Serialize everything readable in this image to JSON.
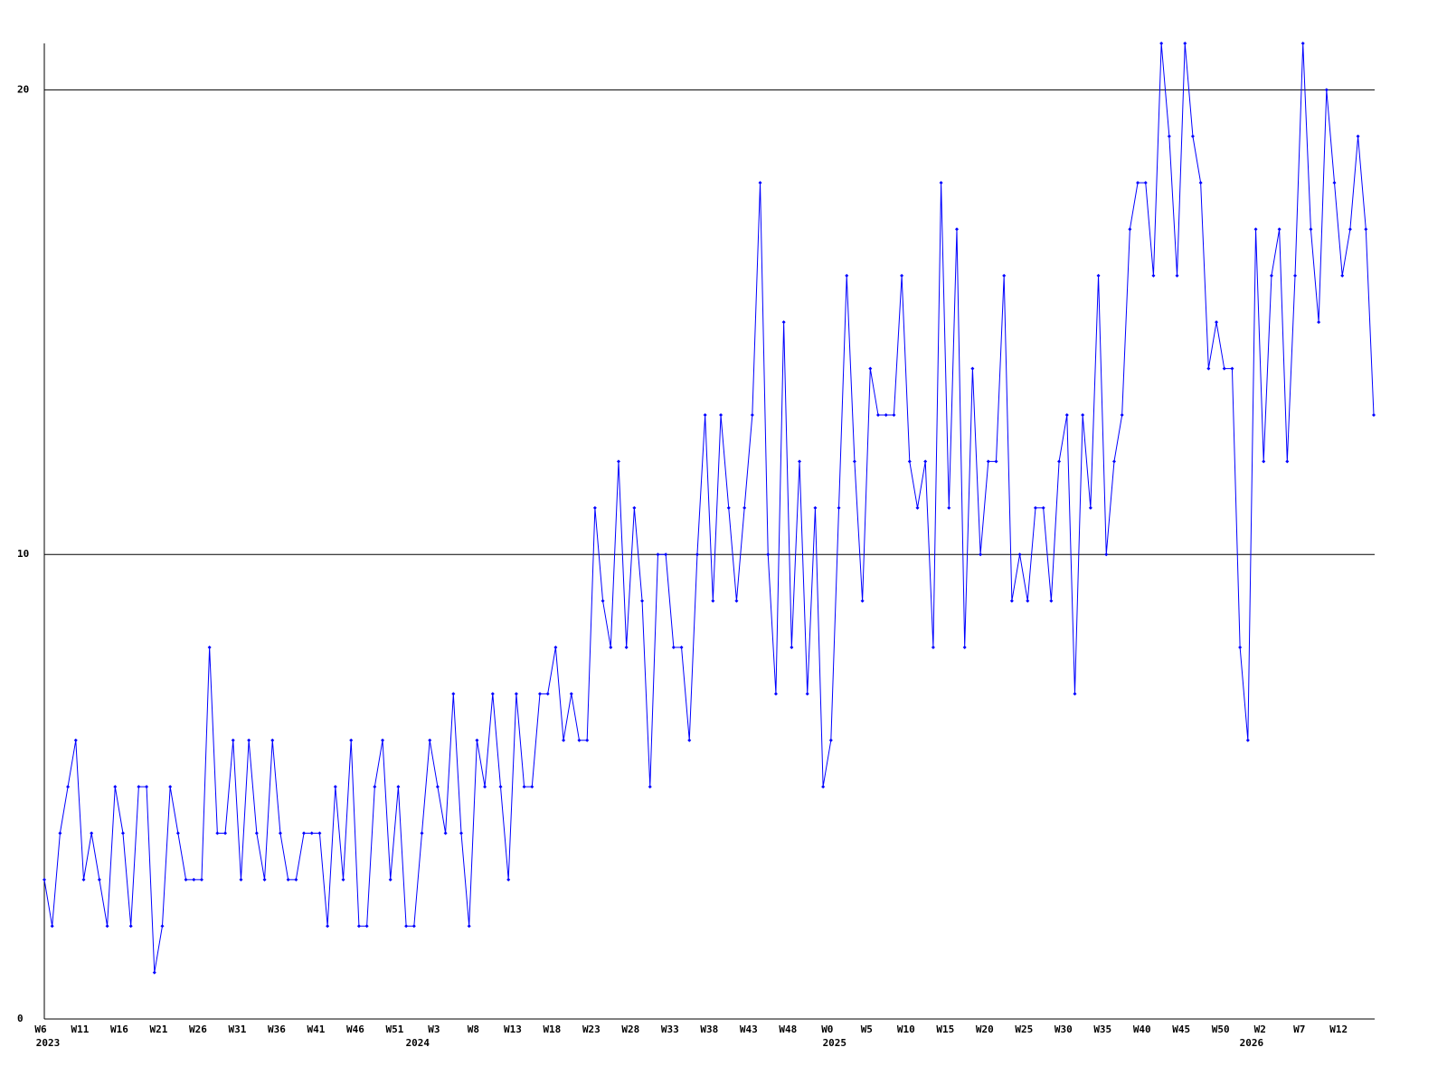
{
  "chart_data": {
    "type": "line",
    "categories": [
      "W6",
      null,
      null,
      null,
      null,
      "W11",
      null,
      null,
      null,
      null,
      "W16",
      null,
      null,
      null,
      null,
      "W21",
      null,
      null,
      null,
      null,
      "W26",
      null,
      null,
      null,
      null,
      "W31",
      null,
      null,
      null,
      null,
      "W36",
      null,
      null,
      null,
      null,
      "W41",
      null,
      null,
      null,
      null,
      "W46",
      null,
      null,
      null,
      null,
      "W51",
      null,
      null,
      null,
      null,
      "W3",
      null,
      null,
      null,
      null,
      "W8",
      null,
      null,
      null,
      null,
      "W13",
      null,
      null,
      null,
      null,
      "W18",
      null,
      null,
      null,
      null,
      "W23",
      null,
      null,
      null,
      null,
      "W28",
      null,
      null,
      null,
      null,
      "W33",
      null,
      null,
      null,
      null,
      "W38",
      null,
      null,
      null,
      null,
      "W43",
      null,
      null,
      null,
      null,
      "W48",
      null,
      null,
      null,
      null,
      "W0",
      null,
      null,
      null,
      null,
      "W5",
      null,
      null,
      null,
      null,
      "W10",
      null,
      null,
      null,
      null,
      "W15",
      null,
      null,
      null,
      null,
      "W20",
      null,
      null,
      null,
      null,
      "W25",
      null,
      null,
      null,
      null,
      "W30",
      null,
      null,
      null,
      null,
      "W35",
      null,
      null,
      null,
      null,
      "W40",
      null,
      null,
      null,
      null,
      "W45",
      null,
      null,
      null,
      null,
      "W50",
      null,
      null,
      null,
      null,
      "W2",
      null,
      null,
      null,
      null,
      "W7",
      null,
      null,
      null,
      null,
      "W12",
      null,
      null,
      null,
      null
    ],
    "year_labels": [
      "2023",
      null,
      null,
      null,
      null,
      null,
      null,
      null,
      null,
      null,
      null,
      null,
      null,
      null,
      null,
      null,
      null,
      null,
      null,
      null,
      null,
      null,
      null,
      null,
      null,
      null,
      null,
      null,
      null,
      null,
      null,
      null,
      null,
      null,
      null,
      null,
      null,
      null,
      null,
      null,
      null,
      null,
      null,
      null,
      null,
      null,
      null,
      "2024",
      null,
      null,
      null,
      null,
      null,
      null,
      null,
      null,
      null,
      null,
      null,
      null,
      null,
      null,
      null,
      null,
      null,
      null,
      null,
      null,
      null,
      null,
      null,
      null,
      null,
      null,
      null,
      null,
      null,
      null,
      null,
      null,
      null,
      null,
      null,
      null,
      null,
      null,
      null,
      null,
      null,
      null,
      null,
      null,
      null,
      null,
      null,
      null,
      null,
      null,
      null,
      null,
      "2025",
      null,
      null,
      null,
      null,
      null,
      null,
      null,
      null,
      null,
      null,
      null,
      null,
      null,
      null,
      null,
      null,
      null,
      null,
      null,
      null,
      null,
      null,
      null,
      null,
      null,
      null,
      null,
      null,
      null,
      null,
      null,
      null,
      null,
      null,
      null,
      null,
      null,
      null,
      null,
      null,
      null,
      null,
      null,
      null,
      null,
      null,
      null,
      null,
      null,
      null,
      null,
      null,
      "2026",
      null,
      null,
      null,
      null,
      null,
      null,
      null,
      null,
      null,
      null,
      null,
      null,
      null,
      null,
      null,
      null
    ],
    "values": [
      3,
      2,
      4,
      5,
      6,
      3,
      4,
      3,
      2,
      5,
      4,
      2,
      5,
      5,
      1,
      2,
      5,
      4,
      3,
      3,
      3,
      8,
      4,
      4,
      6,
      3,
      6,
      4,
      3,
      6,
      4,
      3,
      3,
      4,
      4,
      4,
      2,
      5,
      3,
      6,
      2,
      2,
      5,
      6,
      3,
      5,
      2,
      2,
      4,
      6,
      5,
      4,
      7,
      4,
      2,
      6,
      5,
      7,
      5,
      3,
      7,
      5,
      5,
      7,
      7,
      8,
      6,
      7,
      6,
      6,
      11,
      9,
      8,
      12,
      8,
      11,
      9,
      5,
      10,
      10,
      8,
      8,
      6,
      10,
      13,
      9,
      13,
      11,
      9,
      11,
      13,
      18,
      10,
      7,
      15,
      8,
      12,
      7,
      11,
      5,
      6,
      11,
      16,
      12,
      9,
      14,
      13,
      13,
      13,
      16,
      12,
      11,
      12,
      8,
      18,
      11,
      17,
      8,
      14,
      10,
      12,
      12,
      16,
      9,
      10,
      9,
      11,
      11,
      9,
      12,
      13,
      7,
      13,
      11,
      16,
      10,
      12,
      13,
      17,
      18,
      18,
      16,
      21,
      19,
      16,
      21,
      19,
      18,
      14,
      15,
      14,
      14,
      8,
      6,
      17,
      12,
      16,
      17,
      12,
      16,
      21,
      17,
      15,
      20,
      18,
      16,
      17,
      19,
      17,
      13
    ],
    "color": "#0000ff",
    "ylim": [
      0,
      21
    ],
    "yticks": [
      0,
      10,
      20
    ],
    "grid": true
  }
}
